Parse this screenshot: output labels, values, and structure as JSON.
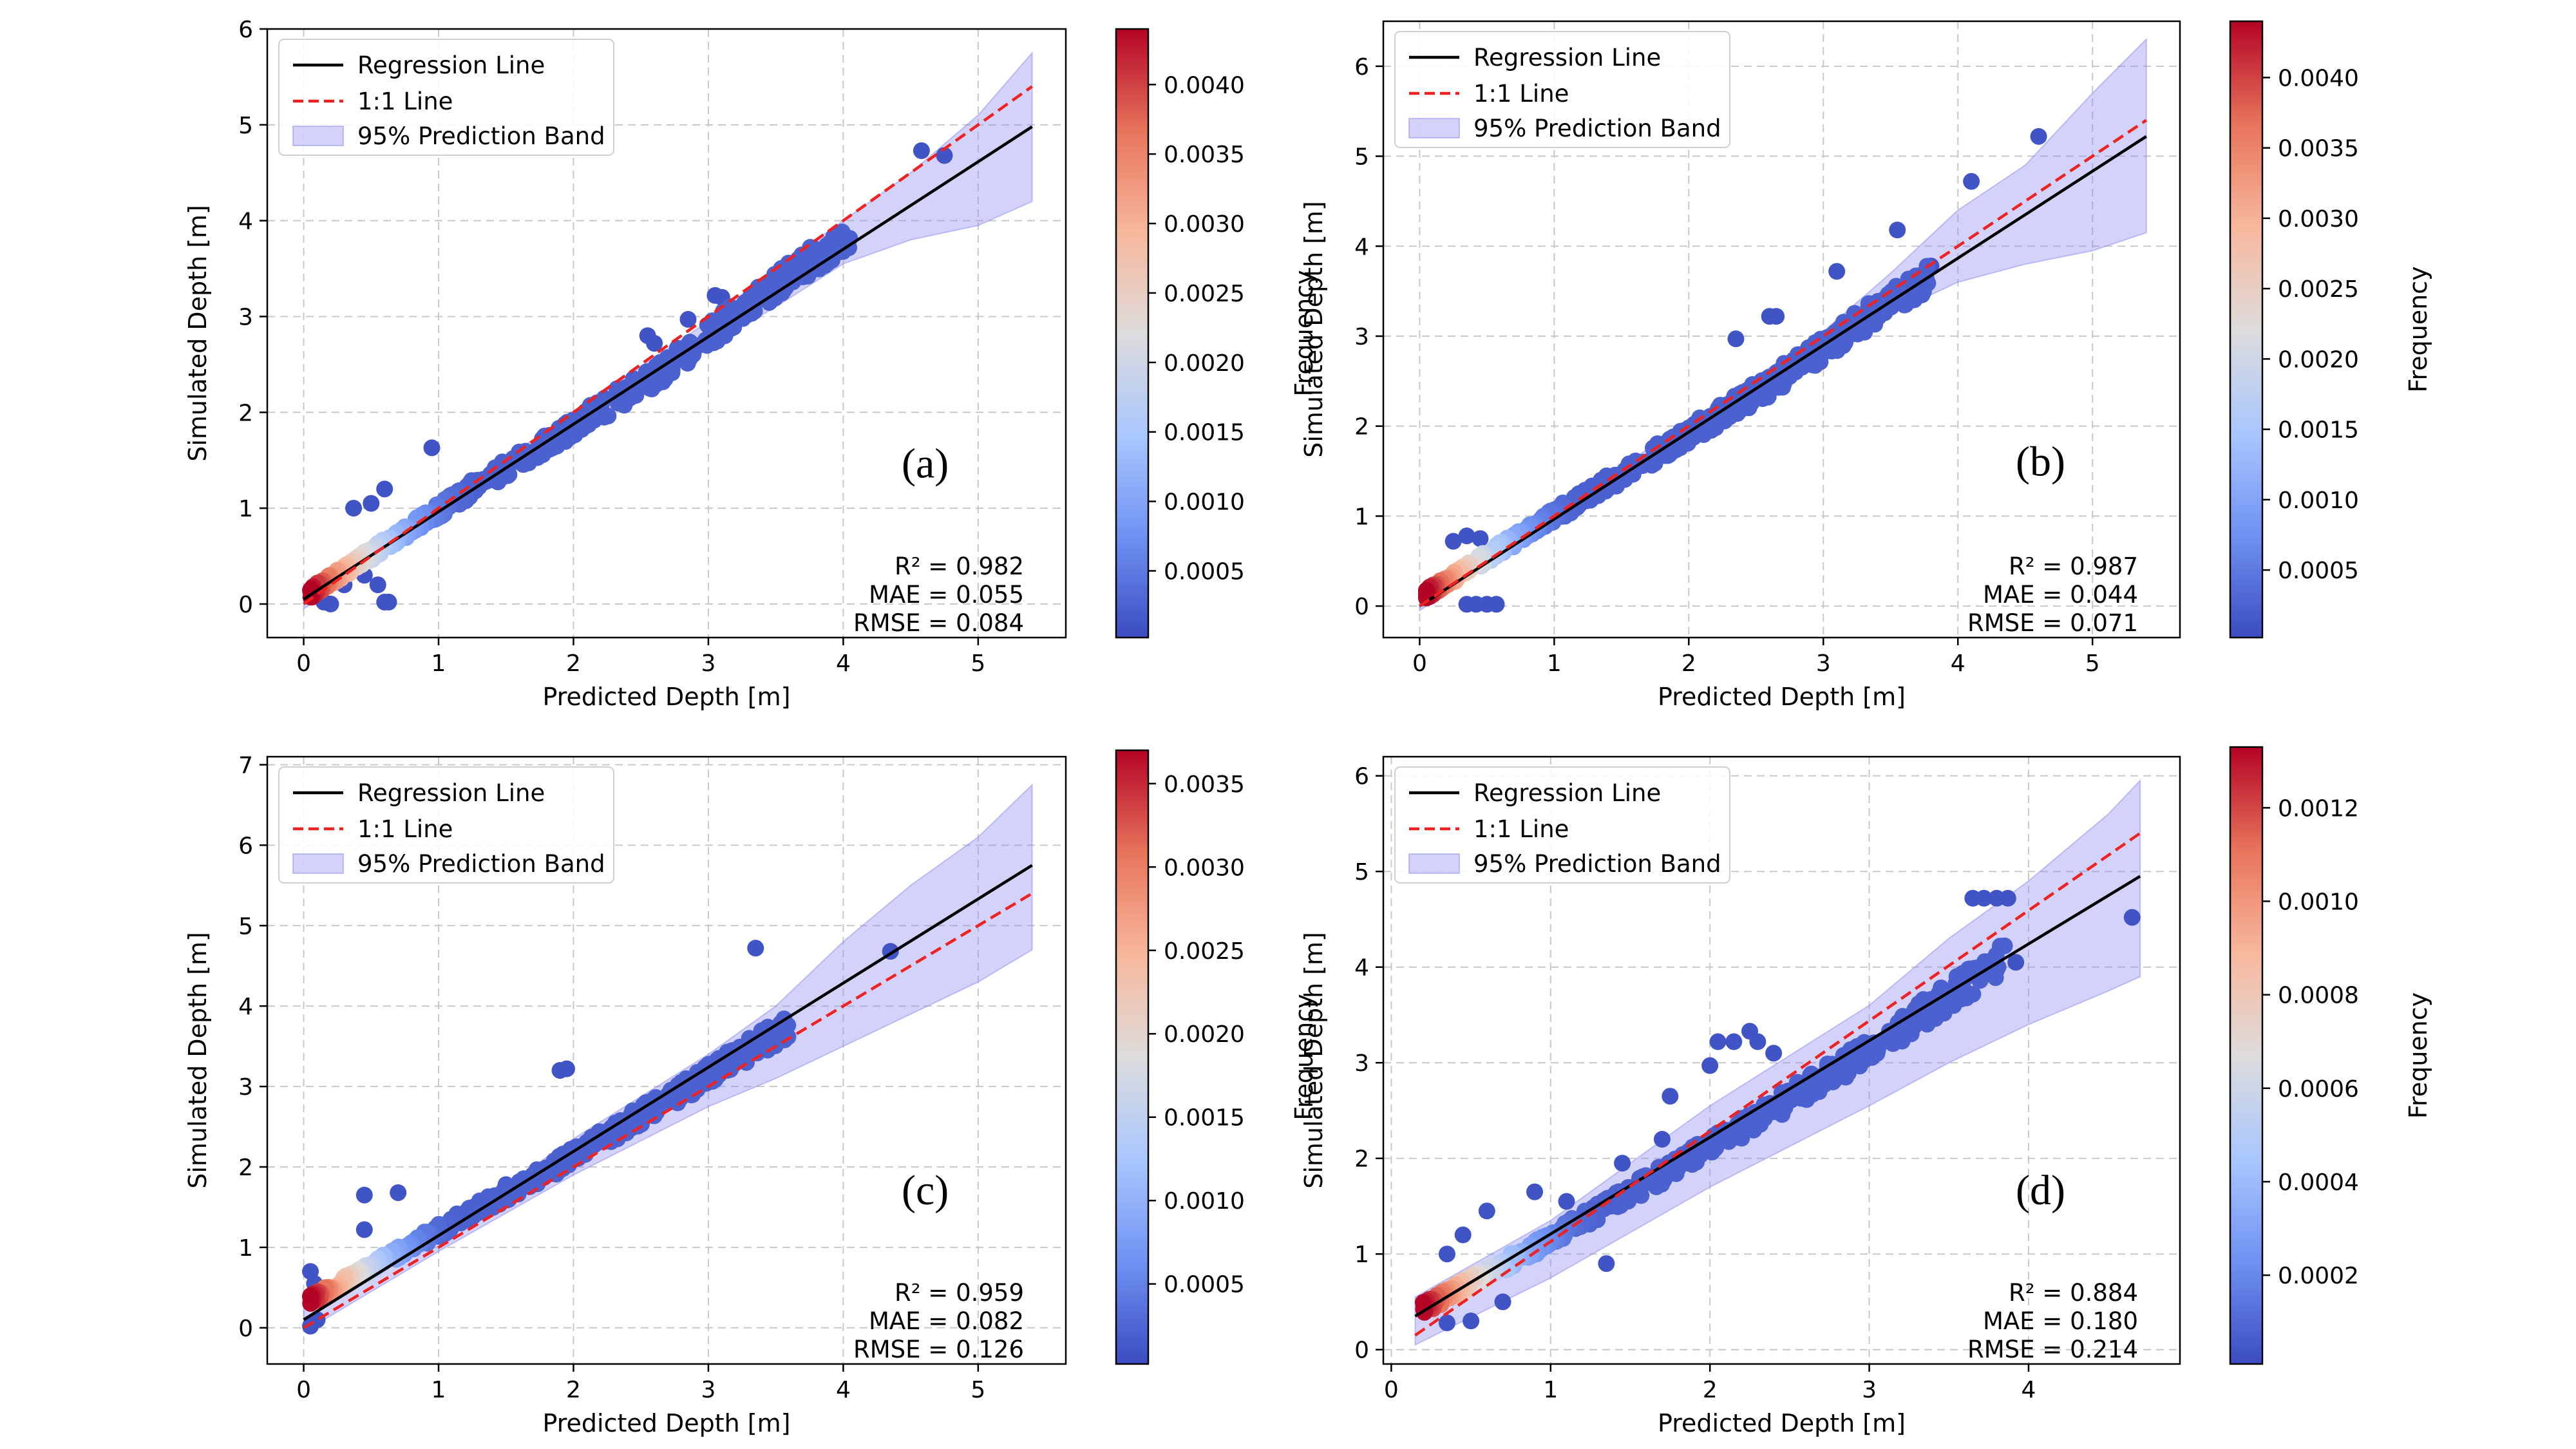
{
  "figure": {
    "legend": {
      "regression_label": "Regression Line",
      "identity_label": "1:1 Line",
      "band_label": "95% Prediction Band"
    },
    "colors": {
      "regression": "#000000",
      "identity": "#ee2222",
      "band": "#8c8cf2",
      "grid": "#c8c8c8",
      "cmap": [
        "#3b4cc0",
        "#6f92f3",
        "#aac7fd",
        "#dddcdc",
        "#f7b89c",
        "#e7745b",
        "#b40426"
      ]
    }
  },
  "chart_data": [
    {
      "type": "scatter",
      "panel_label": "(a)",
      "xlabel": "Predicted Depth [m]",
      "ylabel": "Simulated Depth [m]",
      "xlim": [
        -0.27,
        5.65
      ],
      "ylim": [
        -0.35,
        6.0
      ],
      "xticks": [
        0,
        1,
        2,
        3,
        4,
        5
      ],
      "yticks": [
        0,
        1,
        2,
        3,
        4,
        5,
        6
      ],
      "grid": true,
      "legend_position": "upper-left",
      "regression": {
        "x": [
          0,
          5.4
        ],
        "y": [
          0.05,
          4.98
        ]
      },
      "identity": {
        "x": [
          0,
          5.4
        ],
        "y": [
          0,
          5.4
        ]
      },
      "band": {
        "x": [
          0,
          1,
          2,
          3,
          3.5,
          4,
          4.5,
          5.0,
          5.4
        ],
        "lower": [
          -0.05,
          0.9,
          1.8,
          2.7,
          3.1,
          3.55,
          3.8,
          3.95,
          4.2
        ],
        "upper": [
          0.15,
          1.05,
          2.0,
          2.95,
          3.5,
          4.0,
          4.5,
          5.1,
          5.75
        ]
      },
      "stats": {
        "r2": "R² = 0.982",
        "mae": "MAE = 0.055",
        "rmse": "RMSE = 0.084"
      },
      "colorbar": {
        "label": "Frequency",
        "ticks": [
          0.0005,
          0.001,
          0.0015,
          0.002,
          0.0025,
          0.003,
          0.0035,
          0.004
        ],
        "tick_labels": [
          "0.0005",
          "0.0010",
          "0.0015",
          "0.0020",
          "0.0025",
          "0.0030",
          "0.0035",
          "0.0040"
        ],
        "range": [
          2e-05,
          0.0044
        ]
      },
      "scatter": {
        "trend": [
          0.95,
          0.02
        ],
        "band_x": [
          0.05,
          4.05
        ],
        "band_bias": [
          [
            0,
            0.05
          ],
          [
            1.2,
            0.0
          ],
          [
            2.6,
            -0.12
          ],
          [
            3.5,
            0.0
          ]
        ],
        "extra": [
          [
            0.37,
            1.0
          ],
          [
            0.5,
            1.05
          ],
          [
            0.6,
            1.2
          ],
          [
            0.95,
            1.63
          ],
          [
            0.6,
            0.02
          ],
          [
            0.63,
            0.02
          ],
          [
            0.2,
            0.0
          ],
          [
            0.15,
            0.02
          ],
          [
            3.05,
            3.22
          ],
          [
            3.1,
            3.2
          ],
          [
            2.85,
            2.97
          ],
          [
            2.55,
            2.8
          ],
          [
            2.6,
            2.72
          ],
          [
            4.58,
            4.73
          ],
          [
            4.75,
            4.68
          ],
          [
            3.8,
            3.62
          ],
          [
            4.03,
            3.78
          ],
          [
            0.3,
            0.2
          ],
          [
            0.45,
            0.3
          ],
          [
            0.55,
            0.2
          ]
        ]
      }
    },
    {
      "type": "scatter",
      "panel_label": "(b)",
      "xlabel": "Predicted Depth [m]",
      "ylabel": "Simulated Depth [m]",
      "xlim": [
        -0.27,
        5.65
      ],
      "ylim": [
        -0.35,
        6.5
      ],
      "xticks": [
        0,
        1,
        2,
        3,
        4,
        5
      ],
      "yticks": [
        0,
        1,
        2,
        3,
        4,
        5,
        6
      ],
      "grid": true,
      "legend_position": "upper-left",
      "regression": {
        "x": [
          0,
          5.4
        ],
        "y": [
          0.0,
          5.22
        ]
      },
      "identity": {
        "x": [
          0,
          5.4
        ],
        "y": [
          0,
          5.4
        ]
      },
      "band": {
        "x": [
          0,
          1,
          2,
          3,
          3.5,
          4,
          4.5,
          5.0,
          5.4
        ],
        "lower": [
          -0.05,
          0.92,
          1.85,
          2.8,
          3.25,
          3.6,
          3.8,
          3.95,
          4.15
        ],
        "upper": [
          0.1,
          1.05,
          2.05,
          3.05,
          3.7,
          4.4,
          4.9,
          5.7,
          6.3
        ]
      },
      "stats": {
        "r2": "R² = 0.987",
        "mae": "MAE = 0.044",
        "rmse": "RMSE = 0.071"
      },
      "colorbar": {
        "label": "Frequency",
        "ticks": [
          0.0005,
          0.001,
          0.0015,
          0.002,
          0.0025,
          0.003,
          0.0035,
          0.004
        ],
        "tick_labels": [
          "0.0005",
          "0.0010",
          "0.0015",
          "0.0020",
          "0.0025",
          "0.0030",
          "0.0035",
          "0.0040"
        ],
        "range": [
          2e-05,
          0.0044
        ]
      },
      "scatter": {
        "trend": [
          0.965,
          0.01
        ],
        "band_x": [
          0.05,
          3.8
        ],
        "band_bias": [
          [
            0,
            0.08
          ],
          [
            1.2,
            0.02
          ],
          [
            2.6,
            -0.06
          ],
          [
            3.5,
            0.0
          ]
        ],
        "extra": [
          [
            0.25,
            0.72
          ],
          [
            0.35,
            0.78
          ],
          [
            0.45,
            0.75
          ],
          [
            0.35,
            0.02
          ],
          [
            0.42,
            0.02
          ],
          [
            0.5,
            0.02
          ],
          [
            0.57,
            0.02
          ],
          [
            2.35,
            2.97
          ],
          [
            2.6,
            3.22
          ],
          [
            2.65,
            3.22
          ],
          [
            3.1,
            3.72
          ],
          [
            3.55,
            4.18
          ],
          [
            4.1,
            4.72
          ],
          [
            4.6,
            5.22
          ],
          [
            3.8,
            3.78
          ]
        ]
      }
    },
    {
      "type": "scatter",
      "panel_label": "(c)",
      "xlabel": "Predicted Depth [m]",
      "ylabel": "Simulated Depth [m]",
      "xlim": [
        -0.27,
        5.65
      ],
      "ylim": [
        -0.45,
        7.1
      ],
      "xticks": [
        0,
        1,
        2,
        3,
        4,
        5
      ],
      "yticks": [
        0,
        1,
        2,
        3,
        4,
        5,
        6,
        7
      ],
      "grid": true,
      "legend_position": "upper-left",
      "regression": {
        "x": [
          0,
          5.4
        ],
        "y": [
          0.1,
          5.75
        ]
      },
      "identity": {
        "x": [
          0,
          5.4
        ],
        "y": [
          0,
          5.4
        ]
      },
      "band": {
        "x": [
          0,
          1,
          2,
          3,
          3.5,
          4,
          4.5,
          5.0,
          5.4
        ],
        "lower": [
          -0.05,
          0.95,
          1.9,
          2.75,
          3.1,
          3.5,
          3.9,
          4.3,
          4.7
        ],
        "upper": [
          0.25,
          1.2,
          2.35,
          3.4,
          4.0,
          4.8,
          5.5,
          6.1,
          6.75
        ]
      },
      "stats": {
        "r2": "R² = 0.959",
        "mae": "MAE = 0.082",
        "rmse": "RMSE = 0.126"
      },
      "colorbar": {
        "label": "Frequency",
        "ticks": [
          0.0005,
          0.001,
          0.0015,
          0.002,
          0.0025,
          0.003,
          0.0035
        ],
        "tick_labels": [
          "0.0005",
          "0.0010",
          "0.0015",
          "0.0020",
          "0.0025",
          "0.0030",
          "0.0035"
        ],
        "range": [
          2e-05,
          0.0037
        ]
      },
      "scatter": {
        "trend": [
          1.03,
          0.05
        ],
        "band_x": [
          0.05,
          3.6
        ],
        "band_bias": [
          [
            0,
            0.25
          ],
          [
            0.8,
            0.15
          ],
          [
            2.0,
            0.02
          ],
          [
            3.5,
            0.0
          ]
        ],
        "extra": [
          [
            0.05,
            0.7
          ],
          [
            0.08,
            0.55
          ],
          [
            0.45,
            1.65
          ],
          [
            0.7,
            1.68
          ],
          [
            0.45,
            1.22
          ],
          [
            1.9,
            3.2
          ],
          [
            1.95,
            3.22
          ],
          [
            3.35,
            4.72
          ],
          [
            4.35,
            4.68
          ],
          [
            0.05,
            0.02
          ],
          [
            0.1,
            0.1
          ],
          [
            1.5,
            1.78
          ],
          [
            1.7,
            1.9
          ]
        ]
      }
    },
    {
      "type": "scatter",
      "panel_label": "(d)",
      "xlabel": "Predicted Depth [m]",
      "ylabel": "Simulated Depth [m]",
      "xlim": [
        -0.05,
        4.95
      ],
      "ylim": [
        -0.15,
        6.2
      ],
      "xticks": [
        0,
        1,
        2,
        3,
        4
      ],
      "yticks": [
        0,
        1,
        2,
        3,
        4,
        5,
        6
      ],
      "grid": true,
      "legend_position": "upper-left",
      "regression": {
        "x": [
          0.15,
          4.7
        ],
        "y": [
          0.35,
          4.95
        ]
      },
      "identity": {
        "x": [
          0.15,
          4.7
        ],
        "y": [
          0.15,
          5.4
        ]
      },
      "band": {
        "x": [
          0.15,
          1,
          2,
          3,
          3.5,
          4,
          4.5,
          4.7
        ],
        "lower": [
          0.05,
          0.75,
          1.7,
          2.55,
          3.0,
          3.4,
          3.75,
          3.9
        ],
        "upper": [
          0.55,
          1.35,
          2.55,
          3.6,
          4.3,
          4.9,
          5.6,
          5.95
        ]
      },
      "stats": {
        "r2": "R² = 0.884",
        "mae": "MAE = 0.180",
        "rmse": "RMSE = 0.214"
      },
      "colorbar": {
        "label": "Frequency",
        "ticks": [
          0.0002,
          0.0004,
          0.0006,
          0.0008,
          0.001,
          0.0012
        ],
        "tick_labels": [
          "0.0002",
          "0.0004",
          "0.0006",
          "0.0008",
          "0.0010",
          "0.0012"
        ],
        "range": [
          1e-05,
          0.00133
        ]
      },
      "scatter": {
        "trend": [
          1.01,
          0.2
        ],
        "band_x": [
          0.2,
          3.85
        ],
        "band_bias": [
          [
            0,
            0.05
          ],
          [
            1.0,
            -0.05
          ],
          [
            2.0,
            -0.1
          ],
          [
            3.0,
            -0.1
          ],
          [
            3.8,
            0.0
          ]
        ],
        "extra": [
          [
            0.35,
            1.0
          ],
          [
            0.45,
            1.2
          ],
          [
            0.6,
            1.45
          ],
          [
            0.9,
            1.65
          ],
          [
            1.1,
            1.55
          ],
          [
            1.45,
            1.95
          ],
          [
            1.7,
            2.2
          ],
          [
            1.75,
            2.65
          ],
          [
            2.0,
            2.97
          ],
          [
            2.05,
            3.22
          ],
          [
            2.15,
            3.22
          ],
          [
            2.25,
            3.33
          ],
          [
            2.3,
            3.22
          ],
          [
            2.4,
            3.1
          ],
          [
            3.65,
            4.72
          ],
          [
            3.72,
            4.72
          ],
          [
            3.8,
            4.72
          ],
          [
            3.87,
            4.72
          ],
          [
            3.92,
            4.05
          ],
          [
            4.65,
            4.52
          ],
          [
            0.35,
            0.28
          ],
          [
            0.5,
            0.3
          ],
          [
            0.7,
            0.5
          ],
          [
            1.35,
            0.9
          ]
        ]
      }
    }
  ]
}
